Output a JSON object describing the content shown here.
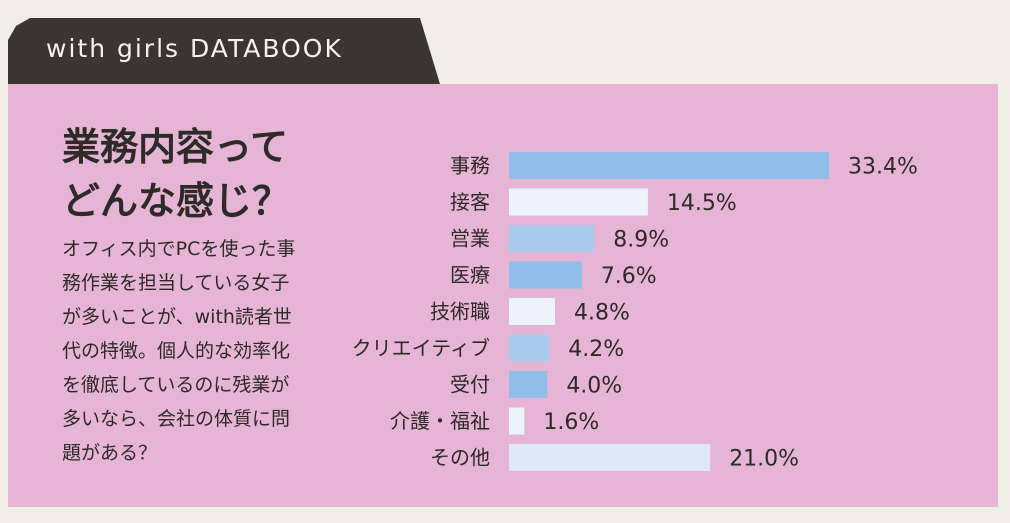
{
  "header": {
    "title": "with girls DATABOOK"
  },
  "heading": {
    "line1": "業務内容って",
    "line2": "どんな感じ？"
  },
  "body": {
    "lines": [
      "オフィス内でPCを使った事",
      "務作業を担当している女子",
      "が多いことが、with読者世",
      "代の特徴。個人的な効率化",
      "を徹底しているのに残業が",
      "多いなら、会社の体質に問",
      "題がある？"
    ]
  },
  "colors": {
    "panel": "#e6b5d5",
    "tab": "#3a3532",
    "bar_blue": "#8fbfe8",
    "bar_lightblue": "#a9cbee",
    "bar_white": "#edf3fa",
    "bar_pale": "#dfe9f6"
  },
  "chart_data": {
    "type": "bar",
    "orientation": "horizontal",
    "categories": [
      "事務",
      "接客",
      "営業",
      "医療",
      "技術職",
      "クリエイティブ",
      "受付",
      "介護・福祉",
      "その他"
    ],
    "values": [
      33.4,
      14.5,
      8.9,
      7.6,
      4.8,
      4.2,
      4.0,
      1.6,
      21.0
    ],
    "value_labels": [
      "33.4%",
      "14.5%",
      "8.9%",
      "7.6%",
      "4.8%",
      "4.2%",
      "4.0%",
      "1.6%",
      "21.0%"
    ],
    "bar_colors": [
      "#8fbfe8",
      "#edf3fa",
      "#a9cbee",
      "#8fbfe8",
      "#edf3fa",
      "#a9cbee",
      "#8fbfe8",
      "#edf3fa",
      "#dfe9f6"
    ],
    "unit": "%"
  }
}
